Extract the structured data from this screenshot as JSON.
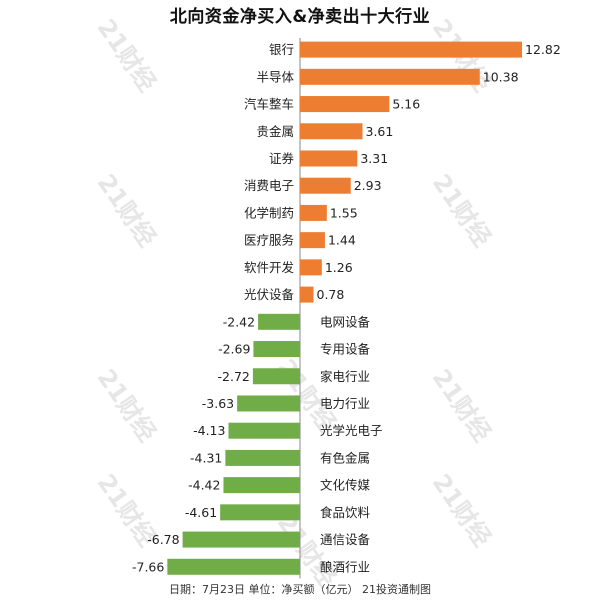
{
  "chart_data": {
    "type": "bar",
    "orientation": "horizontal",
    "title": "北向资金净买入&净卖出十大行业",
    "footer": "日期：7月23日 单位：净买额（亿元） 21投资通制图",
    "watermark_text": "21财经",
    "categories": [
      "银行",
      "半导体",
      "汽车整车",
      "贵金属",
      "证券",
      "消费电子",
      "化学制药",
      "医疗服务",
      "软件开发",
      "光伏设备",
      "电网设备",
      "专用设备",
      "家电行业",
      "电力行业",
      "光学光电子",
      "有色金属",
      "文化传媒",
      "食品饮料",
      "通信设备",
      "酿酒行业"
    ],
    "values": [
      12.82,
      10.38,
      5.16,
      3.61,
      3.31,
      2.93,
      1.55,
      1.44,
      1.26,
      0.78,
      -2.42,
      -2.69,
      -2.72,
      -3.63,
      -4.13,
      -4.31,
      -4.42,
      -4.61,
      -6.78,
      -7.66
    ],
    "value_labels": [
      "12.82",
      "10.38",
      "5.16",
      "3.61",
      "3.31",
      "2.93",
      "1.55",
      "1.44",
      "1.26",
      "0.78",
      "-2.42",
      "-2.69",
      "-2.72",
      "-3.63",
      "-4.13",
      "-4.31",
      "-4.42",
      "-4.61",
      "-6.78",
      "-7.66"
    ],
    "xlim": [
      -7.66,
      12.82
    ],
    "grid": false,
    "legend": "none",
    "colors": {
      "positive": "#ED7D31",
      "negative": "#70AD47",
      "axis": "#888888",
      "text": "#222222"
    }
  }
}
